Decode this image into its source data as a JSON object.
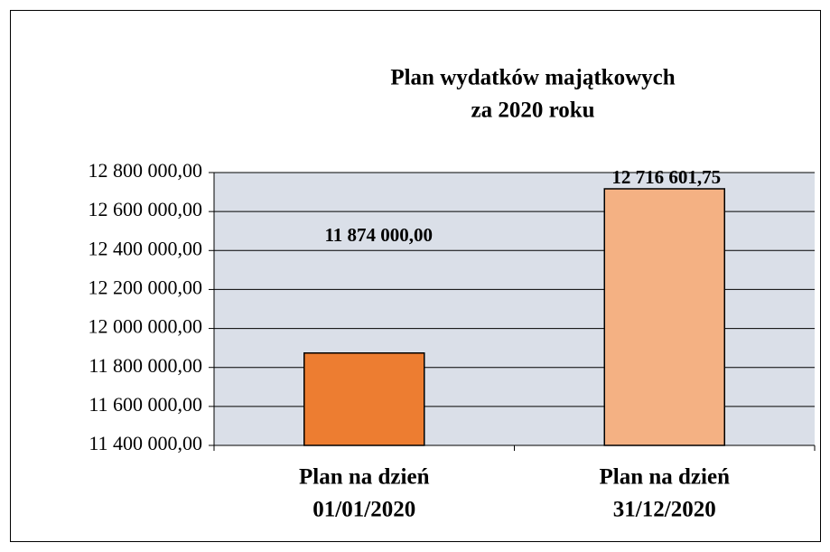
{
  "chart_data": {
    "type": "bar",
    "title": [
      "Plan wydatków majątkowych",
      "za 2020 roku"
    ],
    "categories": [
      [
        "Plan na dzień",
        "01/01/2020"
      ],
      [
        "Plan na dzień",
        "31/12/2020"
      ]
    ],
    "series": [
      {
        "colors": [
          "#ed7d31",
          "#f4b183"
        ],
        "values": [
          11874000,
          12716601.75
        ],
        "value_labels": [
          "11 874 000,00",
          "12 716 601,75"
        ]
      }
    ],
    "ylim": [
      11400000,
      12800000
    ],
    "yticks": [
      {
        "value": 11400000,
        "label": "11 400 000,00"
      },
      {
        "value": 11600000,
        "label": "11 600 000,00"
      },
      {
        "value": 11800000,
        "label": "11 800 000,00"
      },
      {
        "value": 12000000,
        "label": "12 000 000,00"
      },
      {
        "value": 12200000,
        "label": "12 200 000,00"
      },
      {
        "value": 12400000,
        "label": "12 400 000,00"
      },
      {
        "value": 12600000,
        "label": "12 600 000,00"
      },
      {
        "value": 12800000,
        "label": "12 800 000,00"
      }
    ],
    "grid": true
  }
}
